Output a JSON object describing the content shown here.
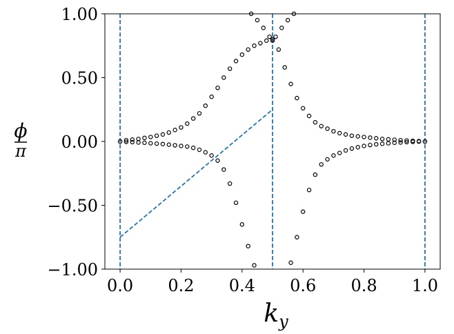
{
  "chart_data": {
    "type": "scatter",
    "title": "",
    "xlabel": "k_y",
    "ylabel": "ϕ/π",
    "xlim": [
      -0.05,
      1.05
    ],
    "ylim": [
      -1.0,
      1.0
    ],
    "grid": false,
    "x_ticks": [
      0.0,
      0.2,
      0.4,
      0.6,
      0.8,
      1.0
    ],
    "x_tick_labels": [
      "0.0",
      "0.2",
      "0.4",
      "0.6",
      "0.8",
      "1.0"
    ],
    "y_ticks": [
      -1.0,
      -0.5,
      0.0,
      0.5,
      1.0
    ],
    "y_tick_labels": [
      "−1.00",
      "−0.50",
      "0.00",
      "0.50",
      "1.00"
    ],
    "marker_color": "#000000",
    "line_color": "#1f77b4",
    "vlines": [
      0.0,
      0.5,
      1.0
    ],
    "dashed_line": {
      "x": [
        0.0,
        0.5
      ],
      "y": [
        -0.75,
        0.25
      ]
    },
    "series": [
      {
        "x": [
          0.0,
          0.02,
          0.04,
          0.06,
          0.08,
          0.1,
          0.12,
          0.14,
          0.16,
          0.18,
          0.2,
          0.22,
          0.24,
          0.26,
          0.28,
          0.3,
          0.32,
          0.34,
          0.36,
          0.38,
          0.4,
          0.42,
          0.44,
          0.46,
          0.48,
          0.5,
          0.52,
          0.54,
          0.56,
          0.58,
          0.6,
          0.62,
          0.64,
          0.66,
          0.68,
          0.7,
          0.72,
          0.74,
          0.76,
          0.78,
          0.8,
          0.82,
          0.84,
          0.86,
          0.88,
          0.9,
          0.92,
          0.94,
          0.96,
          0.98,
          1.0
        ],
        "y": [
          0.0,
          0.01,
          0.015,
          0.02,
          0.028,
          0.035,
          0.045,
          0.055,
          0.07,
          0.09,
          0.11,
          0.14,
          0.18,
          0.22,
          0.28,
          0.35,
          0.42,
          0.5,
          0.57,
          0.63,
          0.68,
          0.72,
          0.75,
          0.77,
          0.79,
          0.8,
          0.72,
          0.58,
          0.45,
          0.34,
          0.26,
          0.2,
          0.15,
          0.12,
          0.1,
          0.08,
          0.065,
          0.055,
          0.045,
          0.04,
          0.035,
          0.03,
          0.025,
          0.02,
          0.017,
          0.014,
          0.01,
          0.008,
          0.005,
          0.003,
          0.0
        ]
      },
      {
        "x": [
          0.0,
          0.02,
          0.04,
          0.06,
          0.08,
          0.1,
          0.12,
          0.14,
          0.16,
          0.18,
          0.2,
          0.22,
          0.24,
          0.26,
          0.28,
          0.3,
          0.32,
          0.34,
          0.36,
          0.38,
          0.4,
          0.42,
          0.44,
          0.46,
          0.48,
          0.5,
          0.52,
          0.54,
          0.56,
          0.58,
          0.6,
          0.62,
          0.64,
          0.66,
          0.68,
          0.7,
          0.72,
          0.74,
          0.76,
          0.78,
          0.8,
          0.82,
          0.84,
          0.86,
          0.88,
          0.9,
          0.92,
          0.94,
          0.96,
          0.98,
          1.0
        ],
        "y": [
          0.0,
          -0.003,
          -0.005,
          -0.008,
          -0.01,
          -0.014,
          -0.017,
          -0.02,
          -0.025,
          -0.03,
          -0.035,
          -0.04,
          -0.05,
          -0.065,
          -0.085,
          -0.11,
          -0.15,
          -0.22,
          -0.33,
          -0.48,
          -0.65,
          -0.82,
          -0.97,
          null,
          null,
          null,
          null,
          null,
          -0.95,
          -0.75,
          -0.55,
          -0.38,
          -0.26,
          -0.18,
          -0.14,
          -0.11,
          -0.09,
          -0.07,
          -0.055,
          -0.045,
          -0.035,
          -0.028,
          -0.022,
          -0.018,
          -0.014,
          -0.01,
          -0.008,
          -0.005,
          -0.003,
          -0.001,
          0.0
        ]
      },
      {
        "x": [
          0.43,
          0.45,
          0.47,
          0.49,
          0.5,
          0.51,
          0.53,
          0.55,
          0.57
        ],
        "y": [
          1.0,
          0.95,
          0.89,
          0.82,
          0.79,
          0.82,
          0.89,
          0.95,
          1.0
        ]
      }
    ]
  }
}
